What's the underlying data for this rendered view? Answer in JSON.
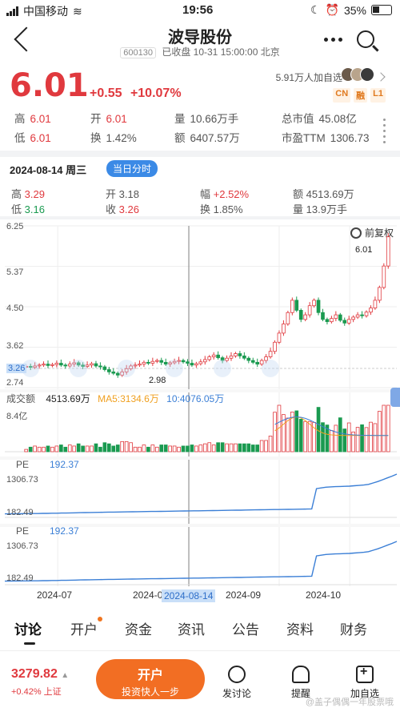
{
  "status_bar": {
    "carrier": "中国移动",
    "time": "19:56",
    "battery": "35%"
  },
  "header": {
    "title": "波导股份",
    "code": "600130",
    "status": "已收盘 10-31 15:00:00 北京"
  },
  "quote": {
    "price": "6.01",
    "change": "+0.55",
    "change_pct": "+10.07%",
    "followers": "5.91万人加自选",
    "tags": [
      "CN",
      "融",
      "L1"
    ],
    "colors": {
      "up": "#e0393e",
      "down": "#1a9a50"
    }
  },
  "stats": {
    "high_label": "高",
    "high": "6.01",
    "low_label": "低",
    "low": "6.01",
    "open_label": "开",
    "open": "6.01",
    "turnover_label": "换",
    "turnover": "1.42%",
    "volume_label": "量",
    "volume": "10.66万手",
    "amount_label": "额",
    "amount": "6407.57万",
    "mktcap_label": "总市值",
    "mktcap": "45.08亿",
    "pe_label": "市盈TTM",
    "pe": "1306.73"
  },
  "day": {
    "date": "2024-08-14 周三",
    "pill": "当日分时",
    "high_label": "高",
    "high": "3.29",
    "low_label": "低",
    "low": "3.16",
    "open_label": "开",
    "open": "3.18",
    "close_label": "收",
    "close": "3.26",
    "amp_label": "幅",
    "amp": "+2.52%",
    "turnover_label": "换",
    "turnover": "1.85%",
    "amount_label": "额",
    "amount": "4513.69万",
    "volume_label": "量",
    "volume": "13.9万手"
  },
  "chart_meta": {
    "adjust": "前复权",
    "vol_label": "成交额",
    "vol_value": "4513.69万",
    "ma5": "MA5:3134.6万",
    "ma10": "10:4076.05万",
    "vol_max": "8.4亿",
    "pe_label": "PE",
    "pe_value": "192.37",
    "pe_top": "1306.73",
    "pe_bottom": "182.49"
  },
  "chart_data": {
    "type": "candlestick",
    "y_ticks": [
      "6.25",
      "5.37",
      "4.50",
      "3.62",
      "3.26",
      "2.74"
    ],
    "ylim": [
      2.74,
      6.25
    ],
    "annotations": {
      "high_marker": "6.01",
      "low_marker": "2.98"
    },
    "x_labels": [
      "2024-07",
      "2024-0",
      "2024-08-14",
      "2024-09",
      "2024-10"
    ],
    "closes": [
      3.17,
      3.15,
      3.18,
      3.2,
      3.22,
      3.19,
      3.21,
      3.24,
      3.2,
      3.18,
      3.22,
      3.25,
      3.2,
      3.17,
      3.2,
      3.23,
      3.18,
      3.16,
      3.1,
      3.05,
      3.02,
      2.98,
      3.05,
      3.12,
      3.18,
      3.2,
      3.22,
      3.26,
      3.24,
      3.28,
      3.3,
      3.26,
      3.22,
      3.25,
      3.28,
      3.3,
      3.27,
      3.24,
      3.2,
      3.23,
      3.27,
      3.32,
      3.38,
      3.42,
      3.36,
      3.3,
      3.35,
      3.4,
      3.45,
      3.4,
      3.35,
      3.3,
      3.26,
      3.22,
      3.3,
      3.38,
      3.5,
      3.7,
      3.9,
      4.1,
      4.35,
      4.62,
      4.4,
      4.2,
      4.3,
      4.5,
      4.62,
      4.35,
      4.2,
      4.15,
      4.22,
      4.3,
      4.18,
      4.12,
      4.2,
      4.25,
      4.3,
      4.28,
      4.36,
      4.45,
      4.62,
      4.9,
      5.37,
      6.01
    ],
    "pe_series": [
      192.37,
      192.37,
      195,
      195,
      198,
      198,
      200,
      200,
      205,
      205,
      210,
      210,
      215,
      215,
      218,
      220,
      225,
      228,
      230,
      232,
      234,
      236,
      240,
      242,
      244,
      246,
      248,
      250,
      252,
      254,
      256,
      258,
      260,
      262,
      264,
      266,
      268,
      270,
      272,
      274,
      276,
      278,
      280,
      282,
      284,
      286,
      288,
      290,
      292,
      294,
      296,
      300,
      302,
      304,
      306,
      308,
      310,
      312,
      314,
      316,
      318,
      320,
      322,
      324,
      326,
      330,
      900,
      920,
      940,
      950,
      955,
      960,
      965,
      970,
      980,
      990,
      1000,
      1020,
      1060,
      1100,
      1150,
      1200,
      1250,
      1306.73
    ]
  },
  "tabs": [
    "讨论",
    "开户",
    "资金",
    "资讯",
    "公告",
    "资料",
    "财务"
  ],
  "footer": {
    "index_value": "3279.82",
    "index_change": "+0.42% 上证",
    "open_title": "开户",
    "open_sub": "投资快人一步",
    "discuss": "发讨论",
    "remind": "提醒",
    "add": "加自选",
    "watermark": "@盖子偶偶一年股票哦"
  }
}
